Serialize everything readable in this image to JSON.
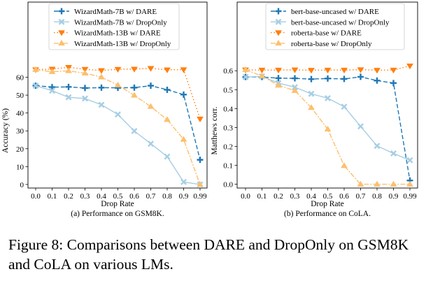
{
  "figure_caption": "Figure 8: Comparisons between DARE and DropOnly on GSM8K and CoLA on various LMs.",
  "chart_data": [
    {
      "type": "line",
      "caption": "(a) Performance on GSM8K.",
      "xlabel": "Drop Rate",
      "ylabel": "Accuracy (%)",
      "categories": [
        "0.0",
        "0.1",
        "0.2",
        "0.3",
        "0.4",
        "0.5",
        "0.6",
        "0.7",
        "0.8",
        "0.9",
        "0.99"
      ],
      "ylim": [
        -2,
        70
      ],
      "yticks": [
        0,
        10,
        20,
        30,
        40,
        50,
        60
      ],
      "ytick_labels": [
        "0",
        "10",
        "20",
        "30",
        "40",
        "50",
        "60"
      ],
      "legend": "top",
      "grid": false,
      "series": [
        {
          "name": "WizardMath-7B w/ DARE",
          "color": "#1f77b4",
          "dash": "6,3",
          "marker": "plus",
          "values": [
            55.3,
            54.5,
            54.6,
            54.0,
            54.2,
            54.1,
            54.2,
            55.3,
            53.0,
            50.3,
            13.8
          ]
        },
        {
          "name": "WizardMath-7B w/ DropOnly",
          "color": "#a6cee3",
          "dash": "none",
          "marker": "x",
          "values": [
            55.3,
            52.5,
            48.8,
            48.1,
            44.6,
            39.2,
            29.9,
            22.8,
            15.6,
            1.4,
            0.0
          ]
        },
        {
          "name": "WizardMath-13B w/ DARE",
          "color": "#ff7f0e",
          "dash": "1.5,3",
          "marker": "tri_down",
          "values": [
            64.3,
            64.6,
            65.6,
            64.5,
            63.8,
            64.5,
            64.6,
            65.0,
            64.2,
            64.3,
            36.7
          ]
        },
        {
          "name": "WizardMath-13B w/ DropOnly",
          "color": "#fdbf6f",
          "dash": "7,2,2,2",
          "marker": "tri_up",
          "values": [
            64.3,
            63.1,
            63.6,
            62.3,
            60.1,
            55.6,
            49.9,
            43.6,
            36.3,
            25.2,
            0.0
          ]
        }
      ]
    },
    {
      "type": "line",
      "caption": "(b) Performance on CoLA.",
      "xlabel": "Drop Rate",
      "ylabel": "Matthews corr.",
      "categories": [
        "0.0",
        "0.1",
        "0.2",
        "0.3",
        "0.4",
        "0.5",
        "0.6",
        "0.7",
        "0.8",
        "0.9",
        "0.99"
      ],
      "ylim": [
        -0.02,
        0.66
      ],
      "yticks": [
        0.0,
        0.1,
        0.2,
        0.3,
        0.4,
        0.5,
        0.6
      ],
      "ytick_labels": [
        "0.0",
        "0.1",
        "0.2",
        "0.3",
        "0.4",
        "0.5",
        "0.6"
      ],
      "legend": "top",
      "grid": false,
      "series": [
        {
          "name": "bert-base-uncased w/ DARE",
          "color": "#1f77b4",
          "dash": "6,3",
          "marker": "plus",
          "values": [
            0.567,
            0.567,
            0.561,
            0.56,
            0.556,
            0.559,
            0.557,
            0.568,
            0.548,
            0.535,
            0.02
          ]
        },
        {
          "name": "bert-base-uncased w/ DropOnly",
          "color": "#a6cee3",
          "dash": "none",
          "marker": "x",
          "values": [
            0.567,
            0.57,
            0.535,
            0.513,
            0.478,
            0.455,
            0.41,
            0.306,
            0.203,
            0.163,
            0.127
          ]
        },
        {
          "name": "roberta-base w/ DARE",
          "color": "#ff7f0e",
          "dash": "1.5,3",
          "marker": "tri_down",
          "values": [
            0.605,
            0.604,
            0.604,
            0.605,
            0.603,
            0.604,
            0.604,
            0.606,
            0.603,
            0.604,
            0.626
          ]
        },
        {
          "name": "roberta-base w/ DropOnly",
          "color": "#fdbf6f",
          "dash": "7,2,2,2",
          "marker": "tri_up",
          "values": [
            0.605,
            0.572,
            0.523,
            0.495,
            0.405,
            0.291,
            0.098,
            0.0,
            0.0,
            0.0,
            0.0
          ]
        }
      ]
    }
  ]
}
